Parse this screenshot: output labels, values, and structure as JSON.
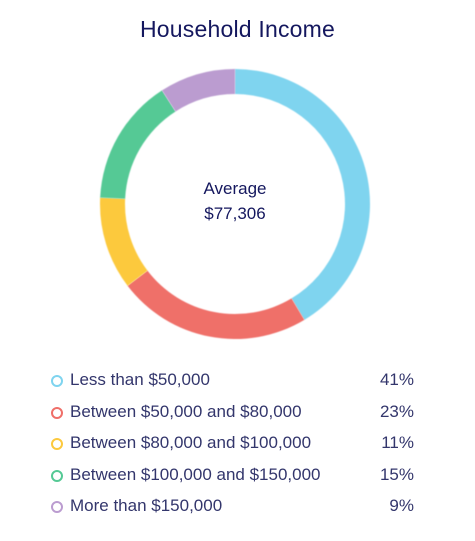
{
  "chart_data": {
    "type": "pie",
    "title": "Household Income",
    "center_label": [
      "Average",
      "$77,306"
    ],
    "categories": [
      "Less than $50,000",
      "Between $50,000 and $80,000",
      "Between $80,000 and $100,000",
      "Between $100,000 and $150,000",
      "More than $150,000"
    ],
    "values": [
      41,
      23,
      11,
      15,
      9
    ],
    "value_labels": [
      "41%",
      "23%",
      "11%",
      "15%",
      "9%"
    ],
    "colors": [
      "#7fd4ef",
      "#ef6f69",
      "#fcc93e",
      "#55c995",
      "#bb9cd0"
    ],
    "legend_position": "bottom"
  }
}
